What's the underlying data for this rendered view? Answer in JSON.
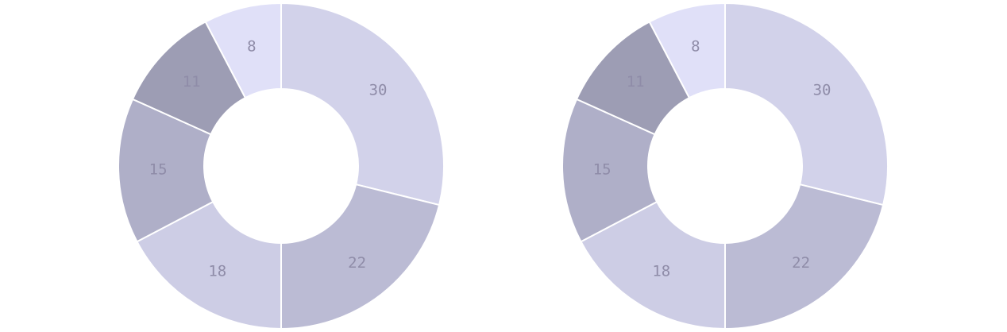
{
  "chart_data": [
    {
      "type": "pie",
      "variant": "donut",
      "values": [
        30,
        22,
        18,
        15,
        11,
        8
      ],
      "colors": [
        "#d2d2ea",
        "#bbbbd4",
        "#cdcde5",
        "#afafc8",
        "#9d9db4",
        "#e0e0f8"
      ],
      "labels_shown": [
        "30",
        "22",
        "18",
        "15",
        "11",
        "8"
      ],
      "legend": "none",
      "start_angle_deg": 0,
      "direction": "clockwise"
    },
    {
      "type": "pie",
      "variant": "donut",
      "values": [
        30,
        22,
        18,
        15,
        11,
        8
      ],
      "colors": [
        "#d2d2ea",
        "#bbbbd4",
        "#cdcde5",
        "#afafc8",
        "#9d9db4",
        "#e0e0f8"
      ],
      "labels_shown": [
        "30",
        "22",
        "18",
        "15",
        "11",
        "8"
      ],
      "legend": "none",
      "start_angle_deg": 0,
      "direction": "clockwise"
    }
  ]
}
